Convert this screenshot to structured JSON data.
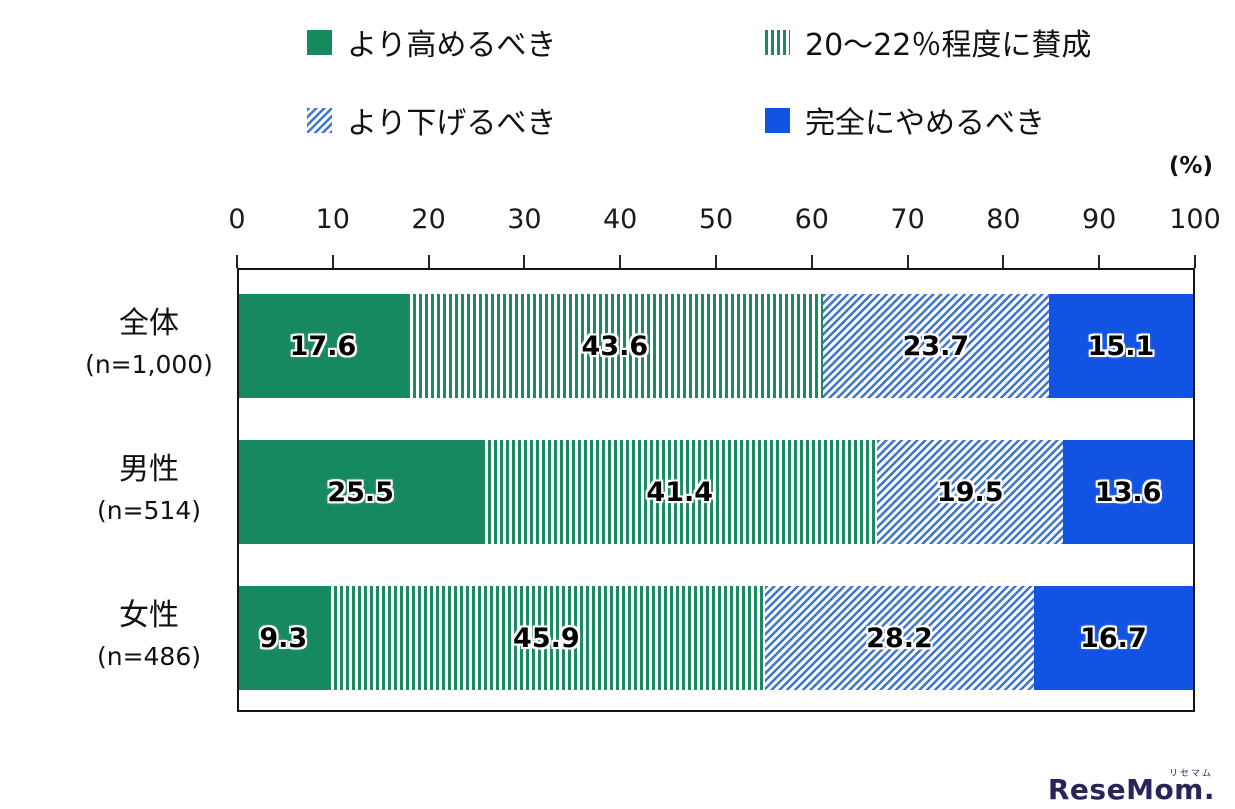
{
  "chart_data": {
    "type": "bar",
    "variant": "horizontal-stacked",
    "x_axis": {
      "min": 0,
      "max": 100,
      "ticks": [
        0,
        10,
        20,
        30,
        40,
        50,
        60,
        70,
        80,
        90,
        100
      ],
      "unit": "(%)"
    },
    "legend_position": "top",
    "grid": false,
    "categories": [
      {
        "label": "全体",
        "n_label": "(n=1,000)"
      },
      {
        "label": "男性",
        "n_label": "(n=514)"
      },
      {
        "label": "女性",
        "n_label": "(n=486)"
      }
    ],
    "series": [
      {
        "name": "より高めるべき",
        "color": "#17895e",
        "pattern": "solid",
        "values": [
          17.6,
          25.5,
          9.3
        ]
      },
      {
        "name": "20～22％程度に賛成",
        "color": "#1c8a60",
        "pattern": "stripes-vertical",
        "values": [
          43.6,
          41.4,
          45.9
        ]
      },
      {
        "name": "より下げるべき",
        "color": "#3d74d6",
        "pattern": "stripes-diagonal",
        "values": [
          23.7,
          19.5,
          28.2
        ]
      },
      {
        "name": "完全にやめるべき",
        "color": "#1253e4",
        "pattern": "solid",
        "values": [
          15.1,
          13.6,
          16.7
        ]
      }
    ]
  },
  "watermark": {
    "ruby": "リセマム",
    "text": "ReseMom."
  }
}
